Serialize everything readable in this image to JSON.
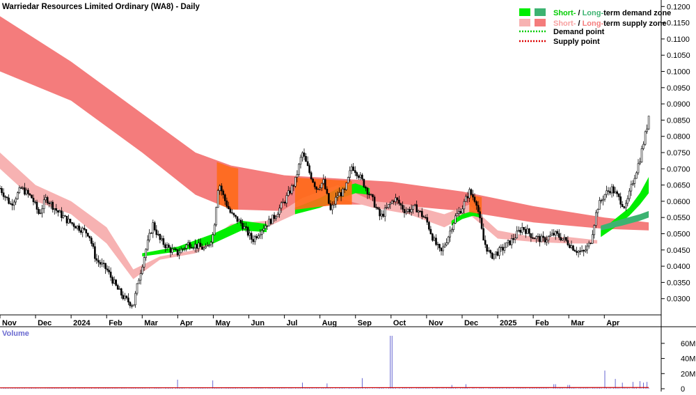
{
  "title": "Warriedar Resources Limited Ordinary (WA8) - Daily",
  "legend": {
    "demand_zone": {
      "short": "Short-",
      "sep": " / ",
      "long": "Long-",
      "rest": "term demand zone"
    },
    "supply_zone": {
      "short": "Short-",
      "sep": " / ",
      "long": "Long-",
      "rest": "term supply zone"
    },
    "demand_point": "Demand point",
    "supply_point": "Supply point"
  },
  "volume_label": "Volume",
  "colors": {
    "long_supply": "#f47c7c",
    "short_supply": "#f7b2b2",
    "short_demand": "#00ee00",
    "long_demand": "#3cb371",
    "overlap": "#ff6a1a",
    "demand_point": "#00cc00",
    "supply_point": "#dd0000",
    "volume_bar": "#5555cc",
    "volume_line": "#cc0000",
    "legend_short_text": "#00cc00",
    "legend_long_text": "#3cb371",
    "legend_short_supply_text": "#f7a0a0",
    "legend_long_supply_text": "#f47c7c"
  },
  "chart_data": {
    "type": "candlestick",
    "y_axis": {
      "ticks": [
        "0.1200",
        "0.1150",
        "0.1100",
        "0.1050",
        "0.1000",
        "0.0950",
        "0.0900",
        "0.0850",
        "0.0800",
        "0.0750",
        "0.0700",
        "0.0650",
        "0.0600",
        "0.0550",
        "0.0500",
        "0.0450",
        "0.0400",
        "0.0350",
        "0.0300"
      ],
      "range": [
        0.025,
        0.122
      ]
    },
    "x_axis": {
      "labels": [
        "Nov",
        "Dec",
        "2024",
        "Feb",
        "Mar",
        "Apr",
        "May",
        "Jun",
        "Jul",
        "Aug",
        "Sep",
        "Oct",
        "Nov",
        "Dec",
        "2025",
        "Feb",
        "Mar",
        "Apr"
      ],
      "range_months": [
        0,
        18.6
      ]
    },
    "price_path": [
      [
        0.0,
        0.064
      ],
      [
        0.3,
        0.059
      ],
      [
        0.6,
        0.064
      ],
      [
        0.9,
        0.061
      ],
      [
        1.1,
        0.056
      ],
      [
        1.3,
        0.061
      ],
      [
        1.6,
        0.057
      ],
      [
        1.9,
        0.054
      ],
      [
        2.2,
        0.052
      ],
      [
        2.5,
        0.05
      ],
      [
        2.7,
        0.042
      ],
      [
        3.0,
        0.039
      ],
      [
        3.3,
        0.033
      ],
      [
        3.5,
        0.03
      ],
      [
        3.75,
        0.028
      ],
      [
        3.9,
        0.036
      ],
      [
        4.1,
        0.045
      ],
      [
        4.3,
        0.053
      ],
      [
        4.5,
        0.048
      ],
      [
        4.8,
        0.045
      ],
      [
        5.0,
        0.044
      ],
      [
        5.3,
        0.047
      ],
      [
        5.6,
        0.046
      ],
      [
        5.8,
        0.045
      ],
      [
        6.0,
        0.05
      ],
      [
        6.15,
        0.066
      ],
      [
        6.3,
        0.061
      ],
      [
        6.5,
        0.056
      ],
      [
        6.8,
        0.053
      ],
      [
        7.1,
        0.048
      ],
      [
        7.4,
        0.052
      ],
      [
        7.7,
        0.055
      ],
      [
        8.0,
        0.06
      ],
      [
        8.3,
        0.066
      ],
      [
        8.5,
        0.075
      ],
      [
        8.7,
        0.069
      ],
      [
        8.9,
        0.064
      ],
      [
        9.1,
        0.066
      ],
      [
        9.3,
        0.057
      ],
      [
        9.5,
        0.062
      ],
      [
        9.7,
        0.063
      ],
      [
        9.9,
        0.071
      ],
      [
        10.1,
        0.068
      ],
      [
        10.3,
        0.064
      ],
      [
        10.5,
        0.06
      ],
      [
        10.7,
        0.055
      ],
      [
        10.9,
        0.058
      ],
      [
        11.1,
        0.061
      ],
      [
        11.4,
        0.057
      ],
      [
        11.7,
        0.058
      ],
      [
        12.0,
        0.054
      ],
      [
        12.2,
        0.048
      ],
      [
        12.4,
        0.044
      ],
      [
        12.6,
        0.049
      ],
      [
        12.8,
        0.055
      ],
      [
        13.0,
        0.058
      ],
      [
        13.2,
        0.063
      ],
      [
        13.4,
        0.06
      ],
      [
        13.6,
        0.048
      ],
      [
        13.8,
        0.043
      ],
      [
        14.1,
        0.045
      ],
      [
        14.4,
        0.048
      ],
      [
        14.7,
        0.052
      ],
      [
        15.0,
        0.049
      ],
      [
        15.3,
        0.048
      ],
      [
        15.6,
        0.05
      ],
      [
        15.9,
        0.048
      ],
      [
        16.2,
        0.045
      ],
      [
        16.4,
        0.044
      ],
      [
        16.6,
        0.047
      ],
      [
        16.8,
        0.058
      ],
      [
        17.0,
        0.062
      ],
      [
        17.2,
        0.064
      ],
      [
        17.4,
        0.061
      ],
      [
        17.6,
        0.058
      ],
      [
        17.8,
        0.066
      ],
      [
        18.0,
        0.073
      ],
      [
        18.1,
        0.078
      ],
      [
        18.2,
        0.083
      ],
      [
        18.25,
        0.0865
      ]
    ],
    "long_term_supply_zone": {
      "top": [
        [
          0,
          0.117
        ],
        [
          2,
          0.103
        ],
        [
          4,
          0.087
        ],
        [
          5.5,
          0.075
        ],
        [
          6.5,
          0.071
        ],
        [
          8,
          0.068
        ],
        [
          9.5,
          0.067
        ],
        [
          11,
          0.066
        ],
        [
          13,
          0.063
        ],
        [
          15,
          0.0585
        ],
        [
          17,
          0.055
        ],
        [
          18.25,
          0.0535
        ]
      ],
      "bottom": [
        [
          0,
          0.1
        ],
        [
          2,
          0.091
        ],
        [
          4,
          0.075
        ],
        [
          5.5,
          0.062
        ],
        [
          6.5,
          0.0575
        ],
        [
          8,
          0.057
        ],
        [
          9.5,
          0.059
        ],
        [
          11,
          0.059
        ],
        [
          13,
          0.057
        ],
        [
          15,
          0.0535
        ],
        [
          17,
          0.0515
        ],
        [
          18.25,
          0.051
        ]
      ]
    },
    "short_term_supply_zone": {
      "top": [
        [
          0,
          0.075
        ],
        [
          1.0,
          0.065
        ],
        [
          2.0,
          0.06
        ],
        [
          3.0,
          0.052
        ],
        [
          3.75,
          0.039
        ],
        [
          4.5,
          0.043
        ],
        [
          5.5,
          0.045
        ],
        [
          6.5,
          0.053
        ],
        [
          7.5,
          0.054
        ],
        [
          8.5,
          0.061
        ],
        [
          9.5,
          0.065
        ],
        [
          10.5,
          0.06
        ],
        [
          11.5,
          0.059
        ],
        [
          12.5,
          0.056
        ],
        [
          13.2,
          0.059
        ],
        [
          14.0,
          0.051
        ],
        [
          15.0,
          0.049
        ],
        [
          16.0,
          0.049
        ],
        [
          16.8,
          0.048
        ]
      ],
      "bottom": [
        [
          0,
          0.07
        ],
        [
          1.0,
          0.06
        ],
        [
          2.0,
          0.056
        ],
        [
          3.0,
          0.047
        ],
        [
          3.75,
          0.036
        ],
        [
          4.5,
          0.042
        ],
        [
          5.5,
          0.044
        ],
        [
          6.5,
          0.051
        ],
        [
          7.5,
          0.052
        ],
        [
          8.5,
          0.057
        ],
        [
          9.5,
          0.061
        ],
        [
          10.5,
          0.058
        ],
        [
          11.5,
          0.056
        ],
        [
          12.5,
          0.052
        ],
        [
          13.2,
          0.056
        ],
        [
          14.0,
          0.0485
        ],
        [
          15.0,
          0.0475
        ],
        [
          16.0,
          0.047
        ],
        [
          16.8,
          0.047
        ]
      ]
    },
    "short_term_demand_zone": [
      {
        "top": [
          [
            4.0,
            0.044
          ],
          [
            5.0,
            0.046
          ],
          [
            6.0,
            0.05
          ],
          [
            6.8,
            0.054
          ],
          [
            7.5,
            0.053
          ]
        ],
        "bottom": [
          [
            4.0,
            0.043
          ],
          [
            5.0,
            0.0445
          ],
          [
            6.0,
            0.047
          ],
          [
            6.8,
            0.051
          ],
          [
            7.5,
            0.0505
          ]
        ]
      },
      {
        "top": [
          [
            8.3,
            0.058
          ],
          [
            9.0,
            0.061
          ],
          [
            9.6,
            0.0645
          ],
          [
            10.0,
            0.0655
          ],
          [
            10.4,
            0.064
          ]
        ],
        "bottom": [
          [
            8.3,
            0.056
          ],
          [
            9.0,
            0.058
          ],
          [
            9.6,
            0.061
          ],
          [
            10.0,
            0.0625
          ],
          [
            10.4,
            0.062
          ]
        ]
      },
      {
        "top": [
          [
            12.7,
            0.054
          ],
          [
            13.0,
            0.056
          ],
          [
            13.3,
            0.057
          ],
          [
            13.5,
            0.056
          ]
        ],
        "bottom": [
          [
            12.7,
            0.0525
          ],
          [
            13.0,
            0.0545
          ],
          [
            13.3,
            0.0555
          ],
          [
            13.5,
            0.055
          ]
        ]
      },
      {
        "top": [
          [
            16.9,
            0.051
          ],
          [
            17.3,
            0.0545
          ],
          [
            17.7,
            0.058
          ],
          [
            18.0,
            0.0625
          ],
          [
            18.25,
            0.0675
          ]
        ],
        "bottom": [
          [
            16.9,
            0.049
          ],
          [
            17.3,
            0.052
          ],
          [
            17.7,
            0.0555
          ],
          [
            18.0,
            0.059
          ],
          [
            18.25,
            0.0625
          ]
        ]
      }
    ],
    "long_term_demand_zone": {
      "top": [
        [
          16.9,
          0.0525
        ],
        [
          17.5,
          0.0545
        ],
        [
          18.0,
          0.056
        ],
        [
          18.25,
          0.057
        ]
      ],
      "bottom": [
        [
          16.9,
          0.051
        ],
        [
          17.5,
          0.0525
        ],
        [
          18.0,
          0.054
        ],
        [
          18.25,
          0.055
        ]
      ]
    },
    "overlap_regions": [
      [
        6.1,
        6.7
      ],
      [
        8.3,
        9.9
      ],
      [
        13.2,
        13.55
      ]
    ],
    "volume_axis": {
      "ticks": [
        "60M",
        "40M",
        "20M",
        "0"
      ],
      "range": [
        0,
        70
      ]
    },
    "volume_spikes_m": [
      [
        5.0,
        12
      ],
      [
        6.0,
        11
      ],
      [
        8.5,
        8
      ],
      [
        9.2,
        7
      ],
      [
        10.2,
        14
      ],
      [
        11.0,
        70
      ],
      [
        12.7,
        5
      ],
      [
        13.1,
        6
      ],
      [
        15.6,
        6
      ],
      [
        16.0,
        5
      ],
      [
        17.0,
        24
      ],
      [
        17.3,
        13
      ],
      [
        17.5,
        8
      ],
      [
        17.8,
        9
      ],
      [
        18.0,
        10
      ],
      [
        18.1,
        8
      ],
      [
        18.2,
        9
      ]
    ]
  }
}
